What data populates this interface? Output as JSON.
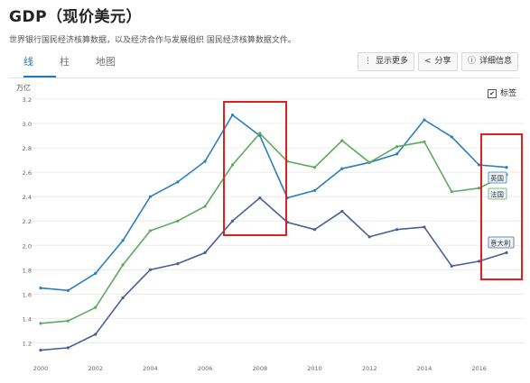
{
  "header": {
    "title": "GDP（现价美元）",
    "subtitle": "世界银行国民经济核算数据，以及经济合作与发展组织 国民经济核算数据文件。"
  },
  "tabs": [
    {
      "label": "线"
    },
    {
      "label": "柱"
    },
    {
      "label": "地图"
    }
  ],
  "toolbar": {
    "more_label": "显示更多",
    "share_label": "分享",
    "details_label": "详细信息"
  },
  "legend_toggle": {
    "label": "标签",
    "checked": true
  },
  "accent_color": "#1f7bc1",
  "highlight_color": "#e02020",
  "chart_data": {
    "type": "line",
    "ylabel": "万亿",
    "ylim": [
      1.1,
      3.2
    ],
    "yticks": [
      "3.2",
      "3.0",
      "2.8",
      "2.6",
      "2.4",
      "2.2",
      "2.0",
      "1.8",
      "1.6",
      "1.4",
      "1.2"
    ],
    "xlim": [
      2000,
      2017
    ],
    "xticks": [
      "2000",
      "2002",
      "2004",
      "2006",
      "2008",
      "2010",
      "2012",
      "2014",
      "2016"
    ],
    "x": [
      2000,
      2001,
      2002,
      2003,
      2004,
      2005,
      2006,
      2007,
      2008,
      2009,
      2010,
      2011,
      2012,
      2013,
      2014,
      2015,
      2016,
      2017
    ],
    "grid": true,
    "series": [
      {
        "name": "英国",
        "color": "#2b7fc0",
        "values": [
          1.65,
          1.63,
          1.77,
          2.04,
          2.4,
          2.52,
          2.69,
          3.07,
          2.9,
          2.39,
          2.45,
          2.63,
          2.68,
          2.75,
          3.03,
          2.89,
          2.66,
          2.64
        ]
      },
      {
        "name": "法国",
        "color": "#5eaa5e",
        "values": [
          1.36,
          1.38,
          1.49,
          1.84,
          2.12,
          2.2,
          2.32,
          2.66,
          2.92,
          2.69,
          2.64,
          2.86,
          2.68,
          2.81,
          2.85,
          2.44,
          2.47,
          2.58
        ]
      },
      {
        "name": "意大利",
        "color": "#4a5e98",
        "values": [
          1.14,
          1.16,
          1.27,
          1.57,
          1.8,
          1.85,
          1.94,
          2.2,
          2.39,
          2.19,
          2.13,
          2.28,
          2.07,
          2.13,
          2.15,
          1.83,
          1.87,
          1.94
        ]
      }
    ]
  }
}
